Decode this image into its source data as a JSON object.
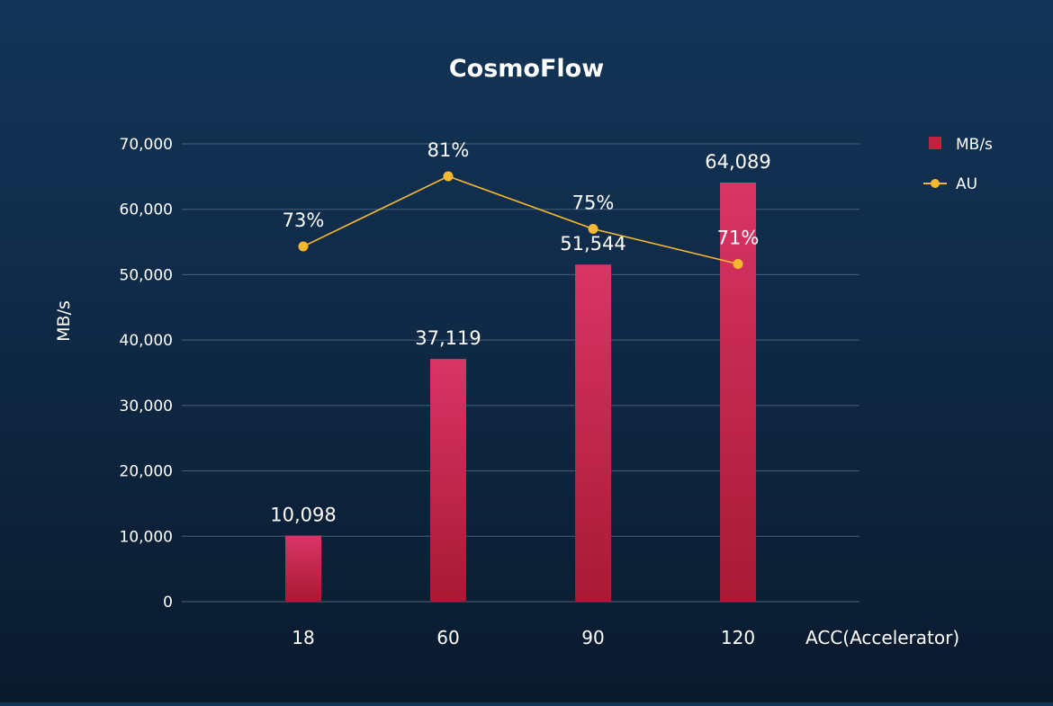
{
  "chart_data": {
    "type": "bar",
    "title": "CosmoFlow",
    "xlabel": "ACC(Accelerator)",
    "ylabel": "MB/s",
    "categories": [
      "18",
      "60",
      "90",
      "120"
    ],
    "ylim": [
      0,
      70000
    ],
    "yticks": [
      0,
      10000,
      20000,
      30000,
      40000,
      50000,
      60000,
      70000
    ],
    "ytick_labels": [
      "0",
      "10,000",
      "20,000",
      "30,000",
      "40,000",
      "50,000",
      "60,000",
      "70,000"
    ],
    "grid": true,
    "legend_position": "top-right",
    "series": [
      {
        "name": "MB/s",
        "type": "bar",
        "values": [
          10098,
          37119,
          51544,
          64089
        ],
        "labels": [
          "10,098",
          "37,119",
          "51,544",
          "64,089"
        ],
        "color": "#d63264"
      },
      {
        "name": "AU",
        "type": "line",
        "values": [
          73,
          81,
          75,
          71
        ],
        "labels": [
          "73%",
          "81%",
          "75%",
          "71%"
        ],
        "color": "#f5b82e"
      }
    ]
  }
}
